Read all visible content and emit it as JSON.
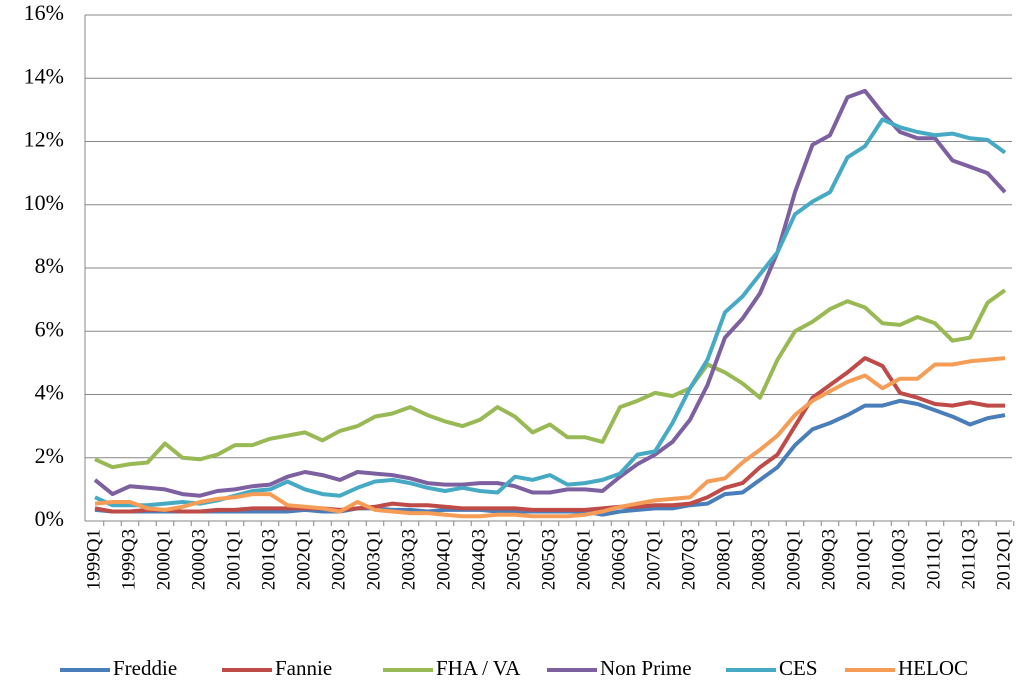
{
  "chart_data": {
    "type": "line",
    "categories": [
      "1999Q1",
      null,
      "1999Q3",
      null,
      "2000Q1",
      null,
      "2000Q3",
      null,
      "2001Q1",
      null,
      "2001Q3",
      null,
      "2002Q1",
      null,
      "2002Q3",
      null,
      "2003Q1",
      null,
      "2003Q3",
      null,
      "2004Q1",
      null,
      "2004Q3",
      null,
      "2005Q1",
      null,
      "2005Q3",
      null,
      "2006Q1",
      null,
      "2006Q3",
      null,
      "2007Q1",
      null,
      "2007Q3",
      null,
      "2008Q1",
      null,
      "2008Q3",
      null,
      "2009Q1",
      null,
      "2009Q3",
      null,
      "2010Q1",
      null,
      "2010Q3",
      null,
      "2011Q1",
      null,
      "2011Q3",
      null,
      "2012Q1"
    ],
    "series": [
      {
        "name": "Freddie",
        "color": "#4a7ebb",
        "values": [
          0.35,
          0.3,
          0.3,
          0.3,
          0.3,
          0.3,
          0.3,
          0.3,
          0.3,
          0.3,
          0.3,
          0.3,
          0.35,
          0.3,
          0.3,
          0.4,
          0.4,
          0.35,
          0.35,
          0.3,
          0.35,
          0.35,
          0.35,
          0.3,
          0.3,
          0.3,
          0.3,
          0.3,
          0.3,
          0.2,
          0.3,
          0.35,
          0.4,
          0.4,
          0.5,
          0.55,
          0.85,
          0.9,
          1.3,
          1.7,
          2.4,
          2.9,
          3.1,
          3.35,
          3.65,
          3.65,
          3.8,
          3.7,
          3.5,
          3.3,
          3.05,
          3.25,
          3.35
        ]
      },
      {
        "name": "Fannie",
        "color": "#be4b48",
        "values": [
          0.4,
          0.3,
          0.3,
          0.35,
          0.35,
          0.3,
          0.3,
          0.35,
          0.35,
          0.4,
          0.4,
          0.4,
          0.4,
          0.4,
          0.35,
          0.4,
          0.45,
          0.55,
          0.5,
          0.5,
          0.45,
          0.4,
          0.4,
          0.4,
          0.4,
          0.35,
          0.35,
          0.35,
          0.35,
          0.4,
          0.45,
          0.45,
          0.5,
          0.5,
          0.55,
          0.75,
          1.05,
          1.2,
          1.7,
          2.1,
          3.0,
          3.9,
          4.3,
          4.7,
          5.15,
          4.9,
          4.05,
          3.9,
          3.7,
          3.65,
          3.75,
          3.65,
          3.65
        ]
      },
      {
        "name": "FHA / VA",
        "color": "#98b954",
        "values": [
          1.95,
          1.7,
          1.8,
          1.85,
          2.45,
          2.0,
          1.95,
          2.1,
          2.4,
          2.4,
          2.6,
          2.7,
          2.8,
          2.55,
          2.85,
          3.0,
          3.3,
          3.4,
          3.6,
          3.35,
          3.15,
          3.0,
          3.2,
          3.6,
          3.3,
          2.8,
          3.05,
          2.65,
          2.65,
          2.5,
          3.6,
          3.8,
          4.05,
          3.95,
          4.2,
          4.95,
          4.7,
          4.35,
          3.9,
          5.1,
          6.0,
          6.3,
          6.7,
          6.95,
          6.75,
          6.25,
          6.2,
          6.45,
          6.25,
          5.7,
          5.8,
          6.9,
          7.3
        ]
      },
      {
        "name": "Non Prime",
        "color": "#7d60a0",
        "values": [
          1.3,
          0.85,
          1.1,
          1.05,
          1.0,
          0.85,
          0.8,
          0.95,
          1.0,
          1.1,
          1.15,
          1.4,
          1.55,
          1.45,
          1.3,
          1.55,
          1.5,
          1.45,
          1.35,
          1.2,
          1.15,
          1.15,
          1.2,
          1.2,
          1.1,
          0.9,
          0.9,
          1.0,
          1.0,
          0.95,
          1.4,
          1.8,
          2.1,
          2.5,
          3.2,
          4.3,
          5.8,
          6.4,
          7.2,
          8.5,
          10.4,
          11.9,
          12.2,
          13.4,
          13.6,
          12.9,
          12.3,
          12.1,
          12.1,
          11.4,
          11.2,
          11.0,
          10.4
        ]
      },
      {
        "name": "CES",
        "color": "#46aac5",
        "values": [
          0.75,
          0.5,
          0.5,
          0.5,
          0.55,
          0.6,
          0.55,
          0.65,
          0.8,
          0.95,
          1.0,
          1.25,
          1.0,
          0.85,
          0.8,
          1.05,
          1.25,
          1.3,
          1.2,
          1.05,
          0.95,
          1.05,
          0.95,
          0.9,
          1.4,
          1.3,
          1.45,
          1.15,
          1.2,
          1.3,
          1.5,
          2.1,
          2.2,
          3.1,
          4.2,
          5.1,
          6.6,
          7.1,
          7.8,
          8.5,
          9.7,
          10.1,
          10.4,
          11.5,
          11.85,
          12.7,
          12.45,
          12.3,
          12.2,
          12.25,
          12.1,
          12.05,
          11.65
        ]
      },
      {
        "name": "HELOC",
        "color": "#f59d56",
        "values": [
          0.55,
          0.6,
          0.6,
          0.4,
          0.35,
          0.45,
          0.6,
          0.7,
          0.75,
          0.85,
          0.85,
          0.5,
          0.45,
          0.4,
          0.3,
          0.6,
          0.35,
          0.3,
          0.25,
          0.25,
          0.2,
          0.15,
          0.15,
          0.2,
          0.2,
          0.15,
          0.15,
          0.15,
          0.2,
          0.3,
          0.45,
          0.55,
          0.65,
          0.7,
          0.75,
          1.25,
          1.35,
          1.85,
          2.25,
          2.7,
          3.35,
          3.8,
          4.1,
          4.4,
          4.6,
          4.2,
          4.5,
          4.5,
          4.95,
          4.95,
          5.05,
          5.1,
          5.15
        ]
      }
    ],
    "ylim": [
      0,
      16
    ],
    "yticks": [
      {
        "value": 0,
        "label": "0%"
      },
      {
        "value": 2,
        "label": "2%"
      },
      {
        "value": 4,
        "label": "4%"
      },
      {
        "value": 6,
        "label": "6%"
      },
      {
        "value": 8,
        "label": "8%"
      },
      {
        "value": 10,
        "label": "10%"
      },
      {
        "value": 12,
        "label": "12%"
      },
      {
        "value": 14,
        "label": "14%"
      },
      {
        "value": 16,
        "label": "16%"
      }
    ],
    "grid": true,
    "legend": "bottom"
  }
}
